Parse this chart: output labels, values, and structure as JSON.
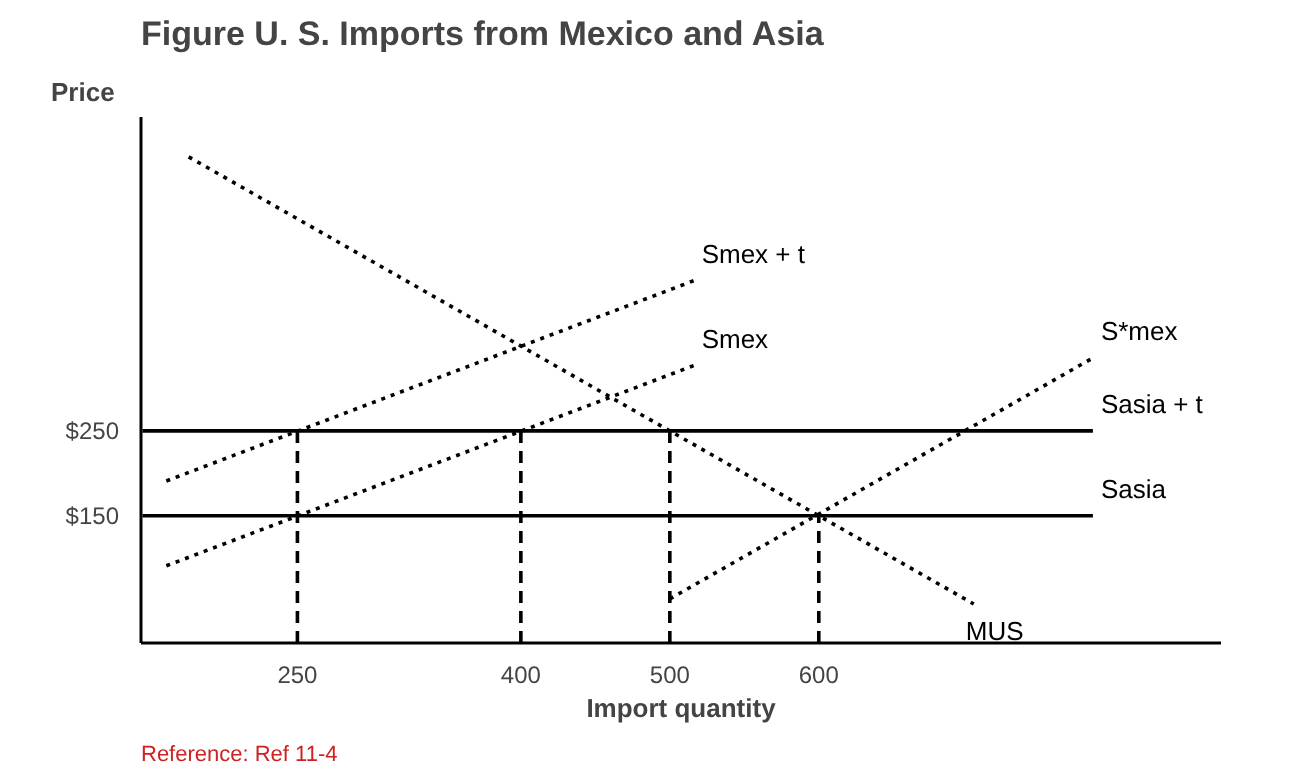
{
  "chart_data": {
    "type": "line",
    "title": "Figure U. S. Imports from Mexico and Asia",
    "xlabel": "Import quantity",
    "ylabel": "Price",
    "annotations": [
      "Reference: Ref 11-4"
    ],
    "xlim": [
      145,
      870
    ],
    "ylim": [
      0,
      620
    ],
    "xticks": [
      250,
      400,
      500,
      600
    ],
    "yticks": [
      {
        "value": 150,
        "label": "$150"
      },
      {
        "value": 250,
        "label": "$250"
      }
    ],
    "grid": false,
    "legend": false,
    "line_style": "dotted",
    "series": [
      {
        "name": "Smex + t",
        "color": "#000000",
        "x": [
          162,
          516
        ],
        "values": [
          191,
          427
        ]
      },
      {
        "name": "Smex",
        "color": "#000000",
        "x": [
          162,
          516
        ],
        "values": [
          91,
          327
        ]
      },
      {
        "name": "S*mex",
        "color": "#000000",
        "x": [
          500,
          784
        ],
        "values": [
          52,
          336
        ]
      },
      {
        "name": "Sasia + t",
        "color": "#000000",
        "line_style": "solid",
        "x": [
          146,
          784
        ],
        "values": [
          250,
          250
        ]
      },
      {
        "name": "Sasia",
        "color": "#000000",
        "line_style": "solid",
        "x": [
          146,
          784
        ],
        "values": [
          150,
          150
        ]
      },
      {
        "name": "MUS",
        "color": "#000000",
        "x": [
          177,
          704
        ],
        "values": [
          573,
          46
        ]
      },
      {
        "color": "#000000",
        "line_style": "dashed",
        "x": [
          250,
          250
        ],
        "values": [
          0,
          250
        ]
      },
      {
        "color": "#000000",
        "line_style": "dashed",
        "x": [
          400,
          400
        ],
        "values": [
          0,
          250
        ]
      },
      {
        "color": "#000000",
        "line_style": "dashed",
        "x": [
          500,
          500
        ],
        "values": [
          0,
          250
        ]
      },
      {
        "color": "#000000",
        "line_style": "dashed",
        "x": [
          600,
          600
        ],
        "values": [
          0,
          150
        ]
      }
    ]
  }
}
